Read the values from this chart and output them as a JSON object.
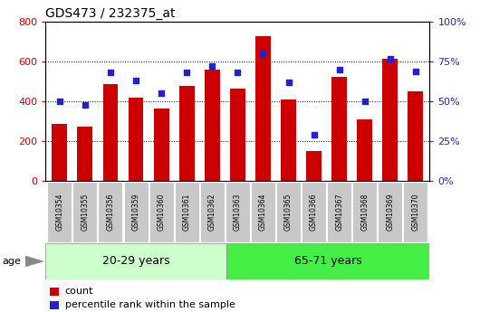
{
  "title": "GDS473 / 232375_at",
  "categories": [
    "GSM10354",
    "GSM10355",
    "GSM10356",
    "GSM10359",
    "GSM10360",
    "GSM10361",
    "GSM10362",
    "GSM10363",
    "GSM10364",
    "GSM10365",
    "GSM10366",
    "GSM10367",
    "GSM10368",
    "GSM10369",
    "GSM10370"
  ],
  "counts": [
    285,
    275,
    485,
    420,
    365,
    480,
    560,
    465,
    730,
    410,
    150,
    525,
    310,
    615,
    450
  ],
  "percentiles": [
    50,
    48,
    68,
    63,
    55,
    68,
    72,
    68,
    80,
    62,
    29,
    70,
    50,
    77,
    69
  ],
  "group1_label": "20-29 years",
  "group2_label": "65-71 years",
  "group1_count": 7,
  "group2_count": 8,
  "bar_color": "#cc0000",
  "dot_color": "#2222cc",
  "bg_color_group1": "#ccffcc",
  "bg_color_group2": "#44ee44",
  "tick_bg_color": "#c8c8c8",
  "ylim_left": [
    0,
    800
  ],
  "ylim_right": [
    0,
    100
  ],
  "yticks_left": [
    0,
    200,
    400,
    600,
    800
  ],
  "yticks_right": [
    0,
    25,
    50,
    75,
    100
  ],
  "ytick_labels_left": [
    "0",
    "200",
    "400",
    "600",
    "800"
  ],
  "ytick_labels_right": [
    "0%",
    "25%",
    "50%",
    "75%",
    "100%"
  ],
  "legend_count": "count",
  "legend_pct": "percentile rank within the sample",
  "age_label": "age"
}
